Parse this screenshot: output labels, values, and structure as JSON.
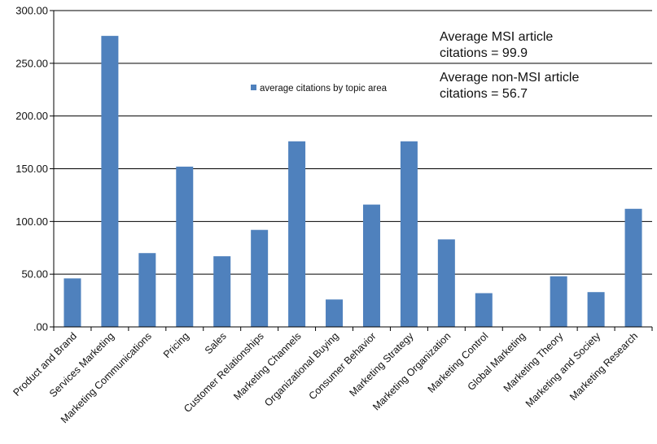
{
  "chart_data": {
    "type": "bar",
    "categories": [
      "Product and Brand",
      "Services Marketing",
      "Marketing Communications",
      "Pricing",
      "Sales",
      "Customer Relationships",
      "Marketing Channels",
      "Organizational Buying",
      "Consumer Behavior",
      "Marketing Strategy",
      "Marketing Organization",
      "Marketing Control",
      "Global Marketing",
      "Marketing Theory",
      "Marketing and Society",
      "Marketing Research"
    ],
    "series": [
      {
        "name": "average citations by topic area",
        "values": [
          46,
          276,
          70,
          152,
          67,
          92,
          176,
          26,
          116,
          176,
          83,
          32,
          0,
          48,
          33,
          112
        ],
        "color": "#4f81bd"
      }
    ],
    "yticks": [
      ".00",
      "50.00",
      "100.00",
      "150.00",
      "200.00",
      "250.00",
      "300.00"
    ],
    "ylim": [
      0,
      300
    ],
    "grid": true,
    "legend_position": "top-center",
    "annotations": [
      "Average MSI article",
      "citations = 99.9",
      "Average non-MSI article",
      "citations = 56.7"
    ]
  }
}
